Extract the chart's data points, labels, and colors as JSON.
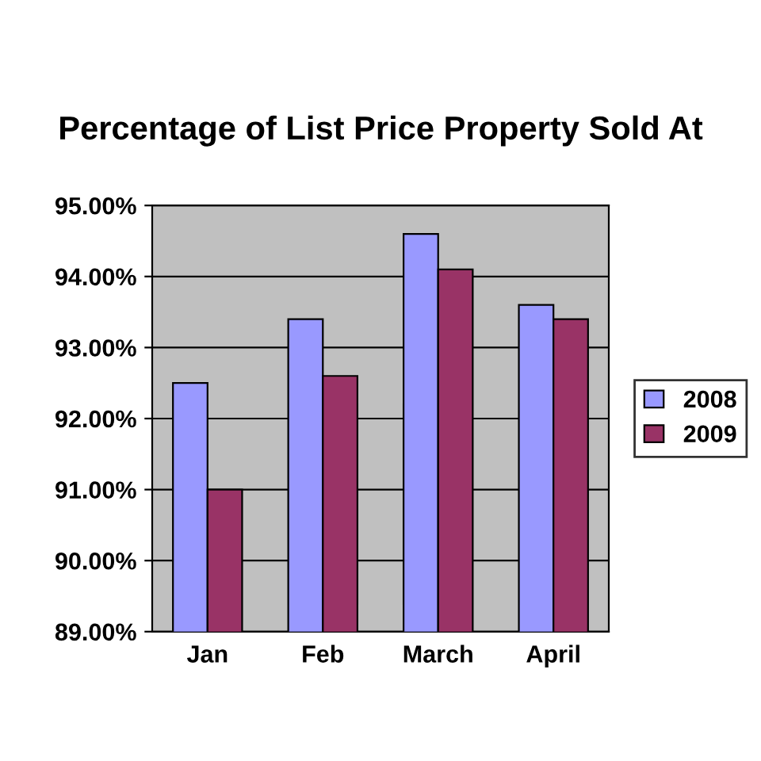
{
  "chart_data": {
    "type": "bar",
    "title": "Percentage of List Price Property Sold At",
    "categories": [
      "Jan",
      "Feb",
      "March",
      "April"
    ],
    "series": [
      {
        "name": "2008",
        "color": "#9999ff",
        "values": [
          92.5,
          93.4,
          94.6,
          93.6
        ]
      },
      {
        "name": "2009",
        "color": "#993366",
        "values": [
          91.0,
          92.6,
          94.1,
          93.4
        ]
      }
    ],
    "ylim": [
      89,
      95
    ],
    "yticks": [
      {
        "value": 89,
        "label": "89.00%"
      },
      {
        "value": 90,
        "label": "90.00%"
      },
      {
        "value": 91,
        "label": "91.00%"
      },
      {
        "value": 92,
        "label": "92.00%"
      },
      {
        "value": 93,
        "label": "93.00%"
      },
      {
        "value": 94,
        "label": "94.00%"
      },
      {
        "value": 95,
        "label": "95.00%"
      }
    ],
    "grid": "y",
    "legend": "right"
  }
}
